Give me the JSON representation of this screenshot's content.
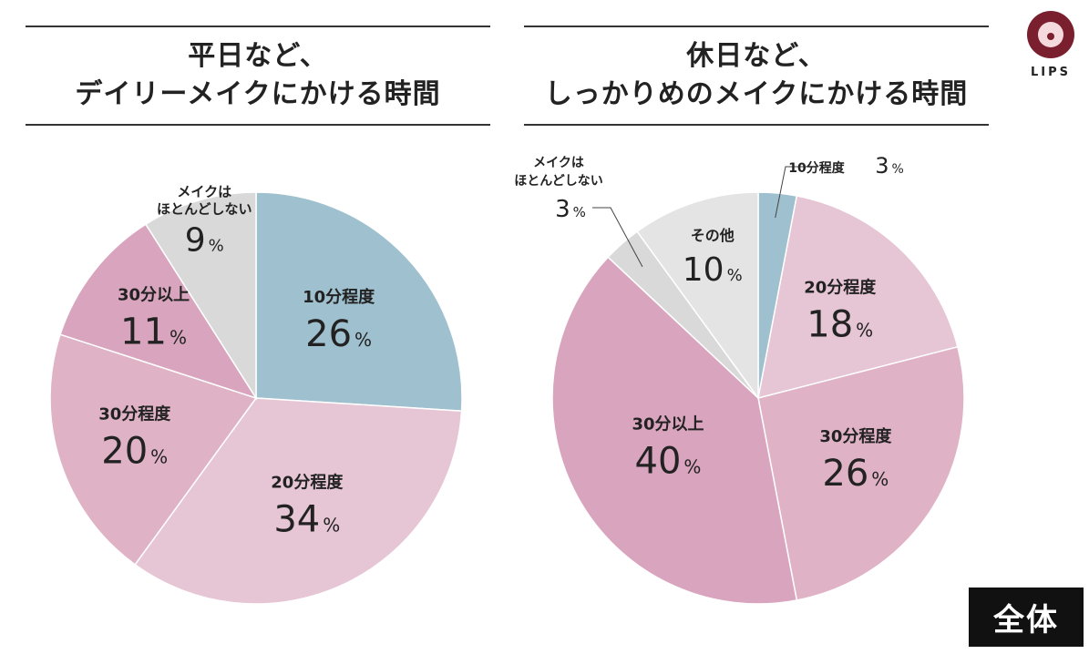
{
  "badge": "全体",
  "logo": {
    "text": "LIPS"
  },
  "chart_data": [
    {
      "type": "pie",
      "title": [
        "平日など、",
        "デイリーメイクにかける時間"
      ],
      "unit": "%",
      "slices": [
        {
          "label": "10分程度",
          "value": 26,
          "color": "#9fc0ce"
        },
        {
          "label": "20分程度",
          "value": 34,
          "color": "#e6c5d5"
        },
        {
          "label": "30分程度",
          "value": 20,
          "color": "#dfb2c6"
        },
        {
          "label": "30分以上",
          "value": 11,
          "color": "#d9a4bd"
        },
        {
          "label": "メイクは ほとんどしない",
          "value": 9,
          "color": "#d9d9d9"
        }
      ]
    },
    {
      "type": "pie",
      "title": [
        "休日など、",
        "しっかりめのメイクにかける時間"
      ],
      "unit": "%",
      "slices": [
        {
          "label": "10分程度",
          "value": 3,
          "color": "#9fc0ce"
        },
        {
          "label": "20分程度",
          "value": 18,
          "color": "#e6c5d5"
        },
        {
          "label": "30分程度",
          "value": 26,
          "color": "#dfb2c6"
        },
        {
          "label": "30分以上",
          "value": 40,
          "color": "#d9a4bd"
        },
        {
          "label": "メイクは ほとんどしない",
          "value": 3,
          "color": "#d9d9d9"
        },
        {
          "label": "その他",
          "value": 10,
          "color": "#e4e4e4"
        }
      ]
    }
  ]
}
